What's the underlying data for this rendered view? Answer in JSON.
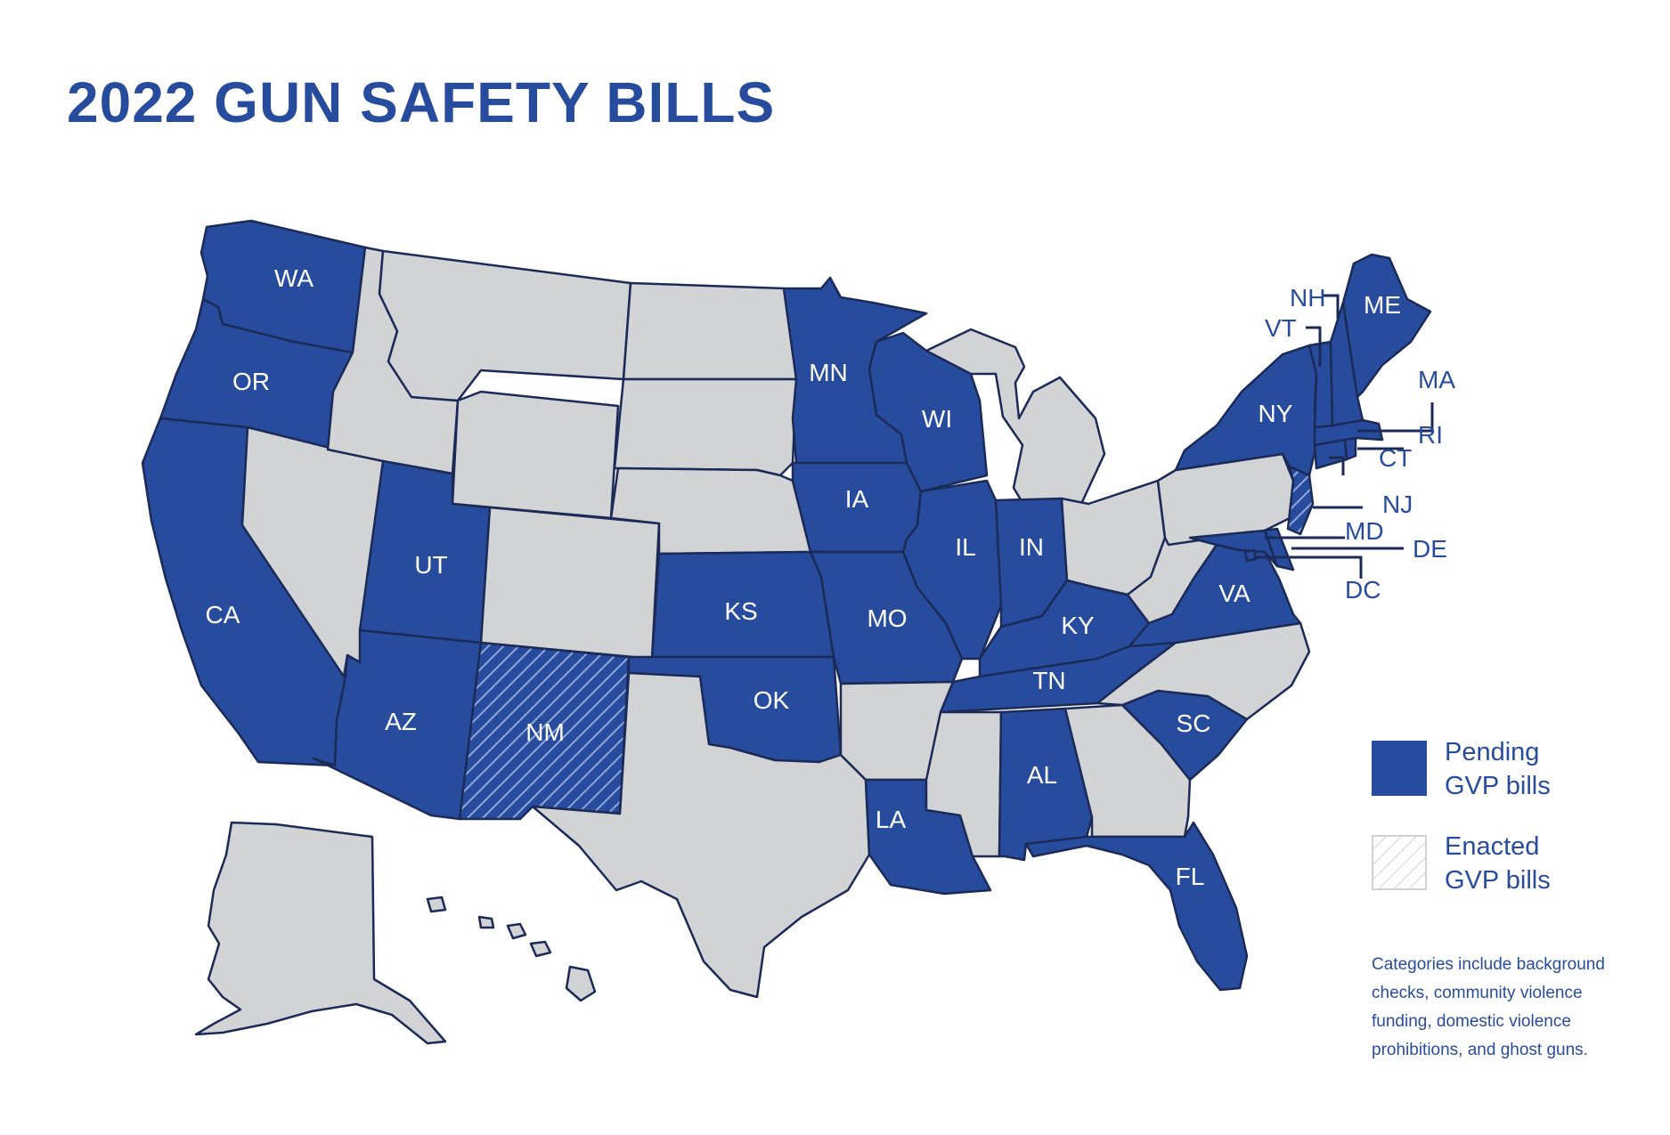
{
  "title": "2022 GUN SAFETY BILLS",
  "colors": {
    "pending": "#284c9d",
    "none": "#d2d3d5",
    "border": "#1b2a57",
    "text": "#284c9d"
  },
  "legend": {
    "pending": {
      "line1": "Pending",
      "line2": "GVP bills"
    },
    "enacted": {
      "line1": "Enacted",
      "line2": "GVP bills"
    }
  },
  "note": "Categories include background checks, community violence funding, domestic violence prohibitions, and ghost guns.",
  "states": {
    "WA": "pending",
    "OR": "pending",
    "CA": "pending",
    "UT": "pending",
    "AZ": "pending",
    "NM": "enacted",
    "KS": "pending",
    "OK": "pending",
    "MN": "pending",
    "IA": "pending",
    "MO": "pending",
    "LA": "pending",
    "WI": "pending",
    "IL": "pending",
    "IN": "pending",
    "KY": "pending",
    "TN": "pending",
    "AL": "pending",
    "FL": "pending",
    "SC": "pending",
    "VA": "pending",
    "MD": "pending",
    "DE": "pending",
    "DC": "pending",
    "NJ": "enacted",
    "NY": "pending",
    "CT": "pending",
    "RI": "pending",
    "MA": "pending",
    "VT": "pending",
    "NH": "pending",
    "ME": "pending",
    "ID": "none",
    "NV": "none",
    "MT": "none",
    "WY": "none",
    "CO": "none",
    "ND": "none",
    "SD": "none",
    "NE": "none",
    "TX": "none",
    "AR": "none",
    "MS": "none",
    "GA": "none",
    "NC": "none",
    "WV": "none",
    "OH": "none",
    "MI": "none",
    "PA": "none",
    "AK": "none",
    "HI": "none"
  },
  "state_labels": {
    "WA": "WA",
    "OR": "OR",
    "CA": "CA",
    "UT": "UT",
    "AZ": "AZ",
    "NM": "NM",
    "KS": "KS",
    "OK": "OK",
    "MN": "MN",
    "IA": "IA",
    "MO": "MO",
    "LA": "LA",
    "WI": "WI",
    "IL": "IL",
    "IN": "IN",
    "KY": "KY",
    "TN": "TN",
    "AL": "AL",
    "FL": "FL",
    "SC": "SC",
    "VA": "VA",
    "NY": "NY",
    "ME": "ME",
    "NH": "NH",
    "VT": "VT",
    "MA": "MA",
    "RI": "RI",
    "CT": "CT",
    "NJ": "NJ",
    "MD": "MD",
    "DE": "DE",
    "DC": "DC"
  }
}
